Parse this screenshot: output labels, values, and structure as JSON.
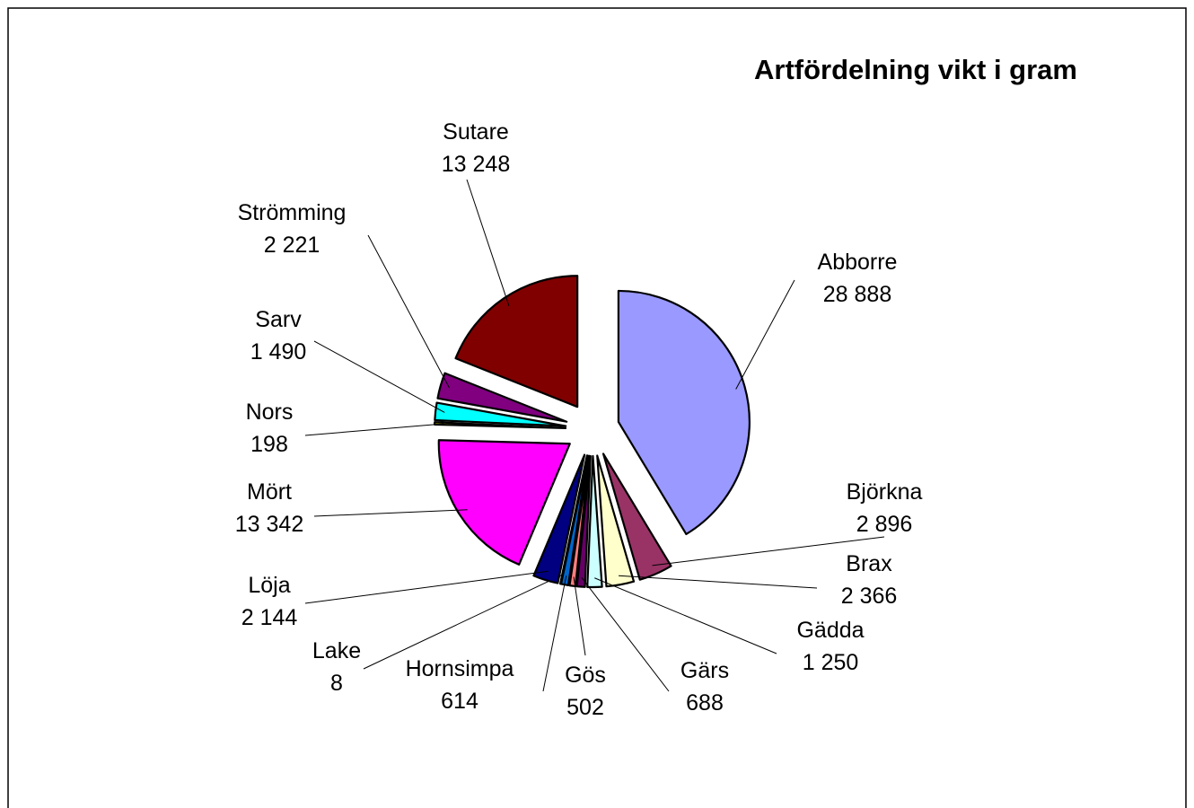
{
  "chart_data": {
    "type": "pie",
    "title": "Artfördelning vikt i gram",
    "categories": [
      "Abborre",
      "Björkna",
      "Brax",
      "Gädda",
      "Gärs",
      "Gös",
      "Hornsimpa",
      "Lake",
      "Löja",
      "Mört",
      "Nors",
      "Sarv",
      "Strömming",
      "Sutare"
    ],
    "values": [
      28888,
      2896,
      2366,
      1250,
      688,
      502,
      614,
      8,
      2144,
      13342,
      198,
      1490,
      2221,
      13248
    ],
    "value_labels": [
      "28 888",
      "2 896",
      "2 366",
      "1 250",
      "688",
      "502",
      "614",
      "8",
      "2 144",
      "13 342",
      "198",
      "1 490",
      "2 221",
      "13 248"
    ],
    "colors": [
      "#9999ff",
      "#993366",
      "#ffffcc",
      "#ccffff",
      "#660066",
      "#ff8080",
      "#0066cc",
      "#ccccff",
      "#000080",
      "#ff00ff",
      "#ffff00",
      "#00ffff",
      "#800080",
      "#800000"
    ]
  }
}
